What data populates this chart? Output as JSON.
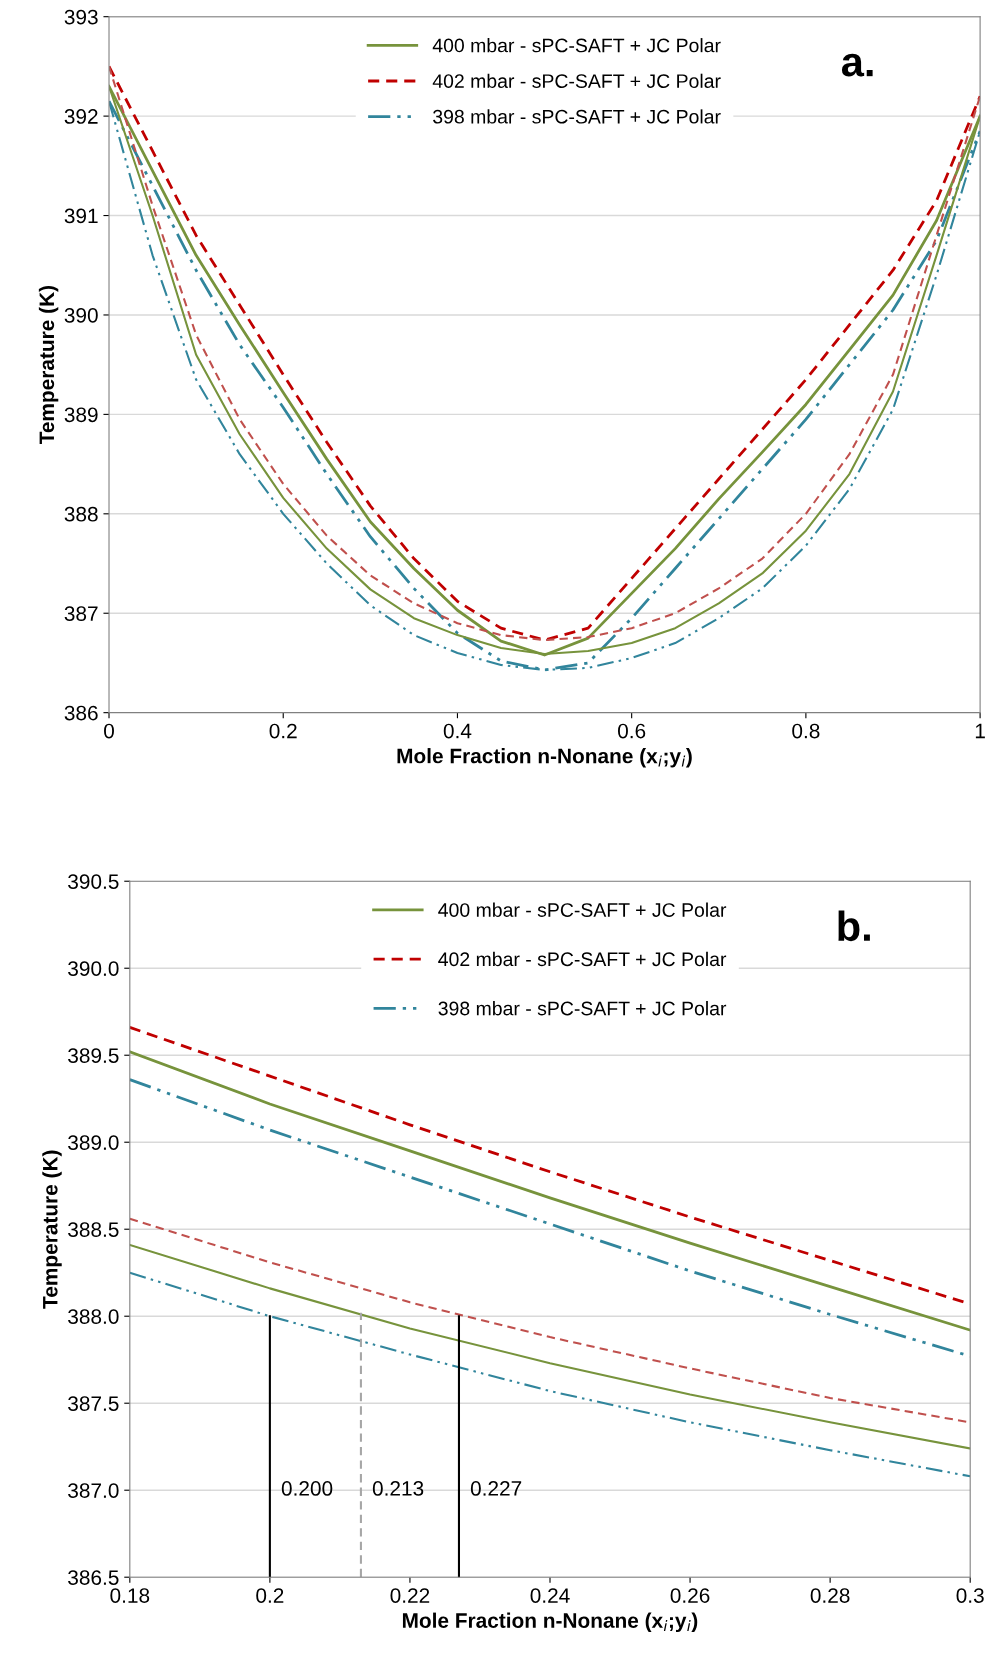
{
  "chart_data": [
    {
      "type": "line",
      "xlabel": "Mole Fraction n-Nonane (x$_{i}$;y$_{i}$)",
      "ylabel": "Temperature (K)",
      "x": [
        0,
        0.05,
        0.1,
        0.15,
        0.2,
        0.25,
        0.3,
        0.35,
        0.4,
        0.45,
        0.5,
        0.55,
        0.6,
        0.65,
        0.7,
        0.75,
        0.8,
        0.85,
        0.9,
        0.95,
        1
      ],
      "xlim": [
        0,
        1
      ],
      "xticks": [
        0,
        0.2,
        0.4,
        0.6,
        0.8,
        1
      ],
      "ylim": [
        386,
        393
      ],
      "yticks": [
        386,
        387,
        388,
        389,
        390,
        391,
        392,
        393
      ],
      "grid": "y",
      "legend": "top",
      "marker": "none",
      "annotations": [
        "a."
      ],
      "series": [
        {
          "name": "400 mbar - sPC-SAFT + JC Polar",
          "color": "#77933c",
          "line_style": "solid",
          "values": [
            392.3,
            391.45,
            390.6,
            389.9,
            389.22,
            388.55,
            387.92,
            387.45,
            387.03,
            386.72,
            386.58,
            386.75,
            387.2,
            387.65,
            388.15,
            388.62,
            389.1,
            389.65,
            390.2,
            390.95,
            392.0
          ]
        },
        {
          "name": "402 mbar - sPC-SAFT + JC Polar",
          "color": "#c00000",
          "line_style": "dashed",
          "values": [
            392.5,
            391.65,
            390.8,
            390.1,
            389.4,
            388.72,
            388.08,
            387.55,
            387.12,
            386.85,
            386.73,
            386.85,
            387.35,
            387.85,
            388.35,
            388.85,
            389.35,
            389.9,
            390.45,
            391.15,
            392.2
          ]
        },
        {
          "name": "398 mbar - sPC-SAFT + JC Polar",
          "color": "#31859c",
          "line_style": "dashdot",
          "values": [
            392.15,
            391.3,
            390.45,
            389.7,
            389.07,
            388.4,
            387.77,
            387.25,
            386.8,
            386.52,
            386.43,
            386.5,
            386.95,
            387.45,
            387.95,
            388.45,
            388.95,
            389.5,
            390.05,
            390.75,
            391.85
          ]
        },
        {
          "color": "#77933c",
          "line_style": "solid",
          "values": [
            392.3,
            391.0,
            389.6,
            388.8,
            388.16,
            387.65,
            387.24,
            386.95,
            386.78,
            386.65,
            386.59,
            386.62,
            386.7,
            386.85,
            387.1,
            387.4,
            387.83,
            388.4,
            389.23,
            390.6,
            392.0
          ]
        },
        {
          "color": "#c0504d",
          "line_style": "dashed",
          "values": [
            392.5,
            391.1,
            389.8,
            388.95,
            388.3,
            387.78,
            387.38,
            387.1,
            386.9,
            386.78,
            386.73,
            386.76,
            386.85,
            387.0,
            387.25,
            387.55,
            388.0,
            388.6,
            389.4,
            390.8,
            392.2
          ]
        },
        {
          "color": "#31859c",
          "line_style": "dashdot",
          "values": [
            392.15,
            390.6,
            389.35,
            388.6,
            388.0,
            387.5,
            387.08,
            386.78,
            386.6,
            386.48,
            386.43,
            386.45,
            386.55,
            386.7,
            386.95,
            387.25,
            387.68,
            388.25,
            389.05,
            390.4,
            391.85
          ]
        }
      ]
    },
    {
      "type": "line",
      "xlabel": "Mole Fraction n-Nonane (x$_{i}$;y$_{i}$)",
      "ylabel": "Temperature (K)",
      "x": [
        0.18,
        0.2,
        0.22,
        0.24,
        0.26,
        0.28,
        0.3
      ],
      "xlim": [
        0.18,
        0.3
      ],
      "xticks": [
        0.18,
        0.2,
        0.22,
        0.24,
        0.26,
        0.28,
        0.3
      ],
      "ylim": [
        386.5,
        390.5
      ],
      "yticks": [
        {
          "value": 386.5,
          "label": "386.5"
        },
        {
          "value": 387,
          "label": "387.0"
        },
        {
          "value": 387.5,
          "label": "387.5"
        },
        {
          "value": 388,
          "label": "388.0"
        },
        {
          "value": 388.5,
          "label": "388.5"
        },
        {
          "value": 389,
          "label": "389.0"
        },
        {
          "value": 389.5,
          "label": "389.5"
        },
        {
          "value": 390,
          "label": "390.0"
        },
        {
          "value": 390.5,
          "label": "390.5"
        }
      ],
      "grid": "y",
      "legend": "top",
      "marker": "none",
      "annotations": [
        "b.",
        {
          "text": "0.200",
          "x": 0.2,
          "y": 387.0
        },
        {
          "text": "0.213",
          "x": 0.213,
          "y": 387.0
        },
        {
          "text": "0.227",
          "x": 0.227,
          "y": 387.0
        }
      ],
      "series": [
        {
          "name": "400 mbar - sPC-SAFT + JC Polar",
          "color": "#77933c",
          "line_style": "solid",
          "values": [
            389.52,
            389.22,
            388.95,
            388.68,
            388.42,
            388.17,
            387.92
          ]
        },
        {
          "name": "402 mbar - sPC-SAFT + JC Polar",
          "color": "#c00000",
          "line_style": "dashed",
          "values": [
            389.66,
            389.38,
            389.1,
            388.83,
            388.57,
            388.32,
            388.07
          ]
        },
        {
          "name": "398 mbar - sPC-SAFT + JC Polar",
          "color": "#31859c",
          "line_style": "dashdot",
          "values": [
            389.36,
            389.07,
            388.8,
            388.53,
            388.26,
            388.01,
            387.77
          ]
        },
        {
          "color": "#77933c",
          "line_style": "solid",
          "values": [
            388.41,
            388.16,
            387.93,
            387.73,
            387.55,
            387.39,
            387.24
          ]
        },
        {
          "color": "#c0504d",
          "line_style": "dashed",
          "values": [
            388.56,
            388.31,
            388.08,
            387.88,
            387.7,
            387.53,
            387.39
          ]
        },
        {
          "color": "#31859c",
          "line_style": "dashdot",
          "values": [
            388.25,
            388.0,
            387.78,
            387.57,
            387.39,
            387.23,
            387.08
          ]
        },
        {
          "color": "#000000",
          "line_style": "solid",
          "x": [
            0.2,
            0.2
          ],
          "values": [
            386.5,
            388.0
          ]
        },
        {
          "color": "#a6a6a6",
          "line_style": "dashed",
          "x": [
            0.213,
            0.213
          ],
          "values": [
            386.5,
            388.02
          ]
        },
        {
          "color": "#000000",
          "line_style": "solid",
          "x": [
            0.227,
            0.227
          ],
          "values": [
            386.5,
            388.0
          ]
        }
      ]
    }
  ]
}
